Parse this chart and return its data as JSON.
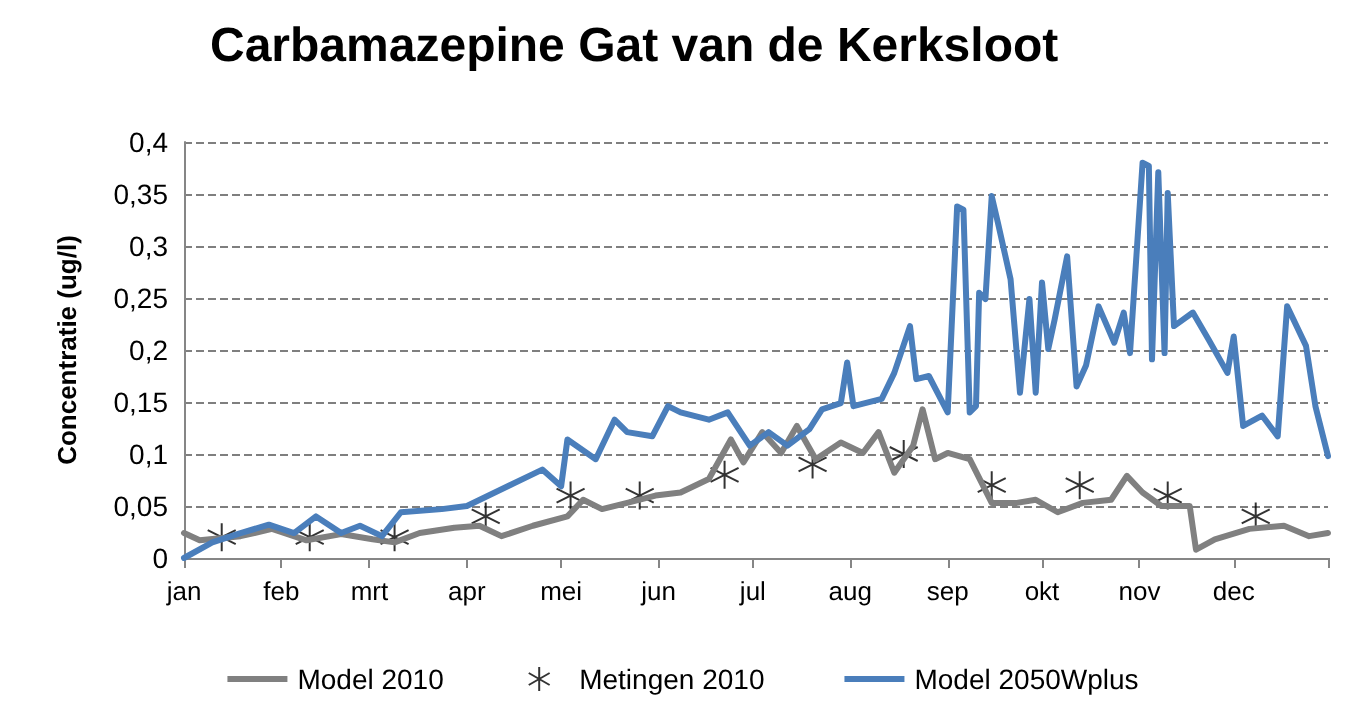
{
  "chart_data": {
    "type": "line",
    "title": "Carbamazepine Gat van de Kerksloot",
    "ylabel": "Concentratie (ug/l)",
    "xlim": [
      "--01-01",
      "--12-31"
    ],
    "xticks": [
      {
        "value": "--01-01",
        "label": "jan"
      },
      {
        "value": "--02-01",
        "label": "feb"
      },
      {
        "value": "--03-01",
        "label": "mrt"
      },
      {
        "value": "--04-01",
        "label": "apr"
      },
      {
        "value": "--05-01",
        "label": "mei"
      },
      {
        "value": "--06-01",
        "label": "jun"
      },
      {
        "value": "--07-01",
        "label": "jul"
      },
      {
        "value": "--08-01",
        "label": "aug"
      },
      {
        "value": "--09-01",
        "label": "sep"
      },
      {
        "value": "--10-01",
        "label": "okt"
      },
      {
        "value": "--11-01",
        "label": "nov"
      },
      {
        "value": "--12-01",
        "label": "dec"
      },
      {
        "value": "--12-31",
        "label": null
      }
    ],
    "ylim": [
      0,
      0.4
    ],
    "yticks": [
      {
        "value": 0,
        "label": "0"
      },
      {
        "value": 0.05,
        "label": "0,05"
      },
      {
        "value": 0.1,
        "label": "0,1"
      },
      {
        "value": 0.15,
        "label": "0,15"
      },
      {
        "value": 0.2,
        "label": "0,2"
      },
      {
        "value": 0.25,
        "label": "0,25"
      },
      {
        "value": 0.3,
        "label": "0,3"
      },
      {
        "value": 0.35,
        "label": "0,35"
      },
      {
        "value": 0.4,
        "label": "0,4"
      }
    ],
    "grid": "y",
    "legend": "bottom",
    "line_style": "solid",
    "marker": "none",
    "series": [
      {
        "name": "Model 2010",
        "color": "#808080",
        "x": [
          "--01-01",
          "--01-06",
          "--01-19",
          "--01-29",
          "--02-09",
          "--02-20",
          "--03-02",
          "--03-09",
          "--03-17",
          "--03-28",
          "--04-05",
          "--04-12",
          "--04-22",
          "--05-03",
          "--05-08",
          "--05-14",
          "--05-22",
          "--05-31",
          "--06-08",
          "--06-17",
          "--06-24",
          "--06-28",
          "--07-04",
          "--07-10",
          "--07-15",
          "--07-21",
          "--07-29",
          "--08-05",
          "--08-10",
          "--08-15",
          "--08-21",
          "--08-24",
          "--08-28",
          "--09-01",
          "--09-08",
          "--09-15",
          "--09-23",
          "--09-29",
          "--10-06",
          "--10-14",
          "--10-23",
          "--10-28",
          "--11-02",
          "--11-08",
          "--11-17",
          "--11-19",
          "--11-25",
          "--12-06",
          "--12-17",
          "--12-25",
          "--12-31"
        ],
        "values": [
          0.024,
          0.017,
          0.021,
          0.028,
          0.017,
          0.023,
          0.018,
          0.015,
          0.024,
          0.029,
          0.031,
          0.021,
          0.031,
          0.04,
          0.056,
          0.047,
          0.053,
          0.06,
          0.063,
          0.076,
          0.114,
          0.092,
          0.121,
          0.101,
          0.127,
          0.095,
          0.111,
          0.101,
          0.121,
          0.082,
          0.108,
          0.143,
          0.095,
          0.101,
          0.095,
          0.053,
          0.053,
          0.056,
          0.044,
          0.053,
          0.056,
          0.079,
          0.063,
          0.05,
          0.05,
          0.008,
          0.018,
          0.028,
          0.031,
          0.021,
          0.024
        ]
      },
      {
        "name": "Metingen 2010",
        "type": "scatter",
        "marker": "cross",
        "color": "#000000",
        "x": [
          "--01-13",
          "--02-10",
          "--03-09",
          "--04-07",
          "--05-04",
          "--05-26",
          "--06-22",
          "--07-20",
          "--08-18",
          "--09-15",
          "--10-13",
          "--11-10",
          "--12-08"
        ],
        "values": [
          0.02,
          0.02,
          0.02,
          0.04,
          0.06,
          0.06,
          0.08,
          0.09,
          0.1,
          0.07,
          0.07,
          0.06,
          0.04
        ]
      },
      {
        "name": "Model 2050Wplus",
        "color": "#4a7ebb",
        "x": [
          "--01-01",
          "--01-10",
          "--01-19",
          "--01-28",
          "--02-05",
          "--02-12",
          "--02-20",
          "--02-26",
          "--03-05",
          "--03-11",
          "--03-24",
          "--04-01",
          "--04-14",
          "--04-25",
          "--05-01",
          "--05-03",
          "--05-12",
          "--05-18",
          "--05-22",
          "--05-30",
          "--06-04",
          "--06-08",
          "--06-17",
          "--06-23",
          "--06-30",
          "--07-06",
          "--07-12",
          "--07-19",
          "--07-23",
          "--07-29",
          "--07-31",
          "--08-02",
          "--08-11",
          "--08-15",
          "--08-20",
          "--08-22",
          "--08-26",
          "--09-01",
          "--09-04",
          "--09-06",
          "--09-08",
          "--09-10",
          "--09-11",
          "--09-13",
          "--09-15",
          "--09-17",
          "--09-21",
          "--09-24",
          "--09-27",
          "--09-29",
          "--10-01",
          "--10-03",
          "--10-05",
          "--10-09",
          "--10-12",
          "--10-15",
          "--10-19",
          "--10-24",
          "--10-27",
          "--10-29",
          "--11-02",
          "--11-04",
          "--11-05",
          "--11-07",
          "--11-09",
          "--11-10",
          "--11-12",
          "--11-18",
          "--11-23",
          "--11-29",
          "--12-01",
          "--12-04",
          "--12-10",
          "--12-15",
          "--12-18",
          "--12-24",
          "--12-27",
          "--12-31"
        ],
        "values": [
          0,
          0.015,
          0.024,
          0.032,
          0.024,
          0.04,
          0.024,
          0.031,
          0.021,
          0.044,
          0.047,
          0.05,
          0.069,
          0.085,
          0.069,
          0.114,
          0.095,
          0.133,
          0.121,
          0.117,
          0.146,
          0.14,
          0.133,
          0.14,
          0.108,
          0.121,
          0.108,
          0.124,
          0.143,
          0.149,
          0.188,
          0.146,
          0.153,
          0.178,
          0.223,
          0.172,
          0.175,
          0.14,
          0.338,
          0.335,
          0.14,
          0.146,
          0.255,
          0.249,
          0.348,
          0.322,
          0.268,
          0.159,
          0.249,
          0.159,
          0.265,
          0.201,
          0.229,
          0.29,
          0.165,
          0.185,
          0.242,
          0.207,
          0.236,
          0.197,
          0.38,
          0.377,
          0.191,
          0.371,
          0.197,
          0.351,
          0.223,
          0.236,
          0.21,
          0.178,
          0.213,
          0.127,
          0.137,
          0.117,
          0.242,
          0.204,
          0.146,
          0.098
        ]
      }
    ]
  }
}
